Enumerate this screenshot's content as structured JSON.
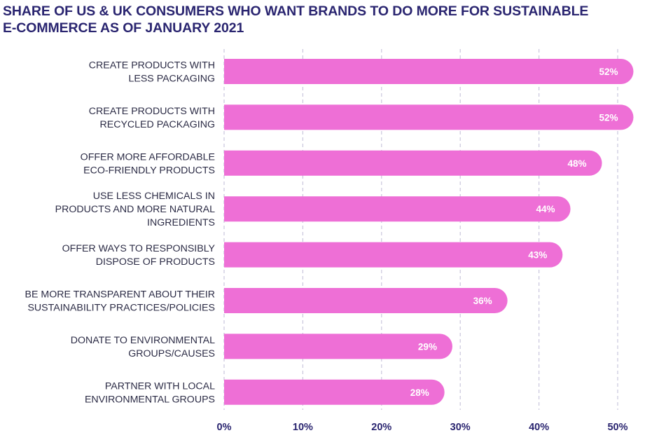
{
  "title": {
    "line1": "SHARE OF US & UK CONSUMERS WHO WANT BRANDS TO DO MORE FOR SUSTAINABLE",
    "line2": "E-COMMERCE AS OF JANUARY 2021"
  },
  "colors": {
    "bar": "#ee6fd6",
    "title": "#2a2570",
    "grid": "#c9c6dc",
    "label": "#2b2b45"
  },
  "chart_data": {
    "type": "bar",
    "orientation": "horizontal",
    "title": "SHARE OF US & UK CONSUMERS WHO WANT BRANDS TO DO MORE FOR SUSTAINABLE E-COMMERCE AS OF JANUARY 2021",
    "categories": [
      [
        "CREATE PRODUCTS WITH",
        "LESS PACKAGING"
      ],
      [
        "CREATE PRODUCTS WITH",
        "RECYCLED PACKAGING"
      ],
      [
        "OFFER  MORE AFFORDABLE",
        "ECO-FRIENDLY PRODUCTS"
      ],
      [
        "USE LESS CHEMICALS IN",
        "PRODUCTS AND MORE NATURAL",
        "INGREDIENTS"
      ],
      [
        "OFFER WAYS TO RESPONSIBLY",
        "DISPOSE OF PRODUCTS"
      ],
      [
        "BE MORE TRANSPARENT ABOUT THEIR",
        "SUSTAINABILITY PRACTICES/POLICIES"
      ],
      [
        "DONATE TO ENVIRONMENTAL",
        "GROUPS/CAUSES"
      ],
      [
        "PARTNER WITH LOCAL",
        "ENVIRONMENTAL GROUPS"
      ]
    ],
    "values": [
      52,
      52,
      48,
      44,
      43,
      36,
      29,
      28
    ],
    "value_labels": [
      "52%",
      "52%",
      "48%",
      "44%",
      "43%",
      "36%",
      "29%",
      "28%"
    ],
    "xlim": [
      0,
      50
    ],
    "xticks": [
      0,
      10,
      20,
      30,
      40,
      50
    ],
    "xtick_labels": [
      "0%",
      "10%",
      "20%",
      "30%",
      "40%",
      "50%"
    ],
    "grid": "vertical-dashed",
    "legend": "none"
  }
}
